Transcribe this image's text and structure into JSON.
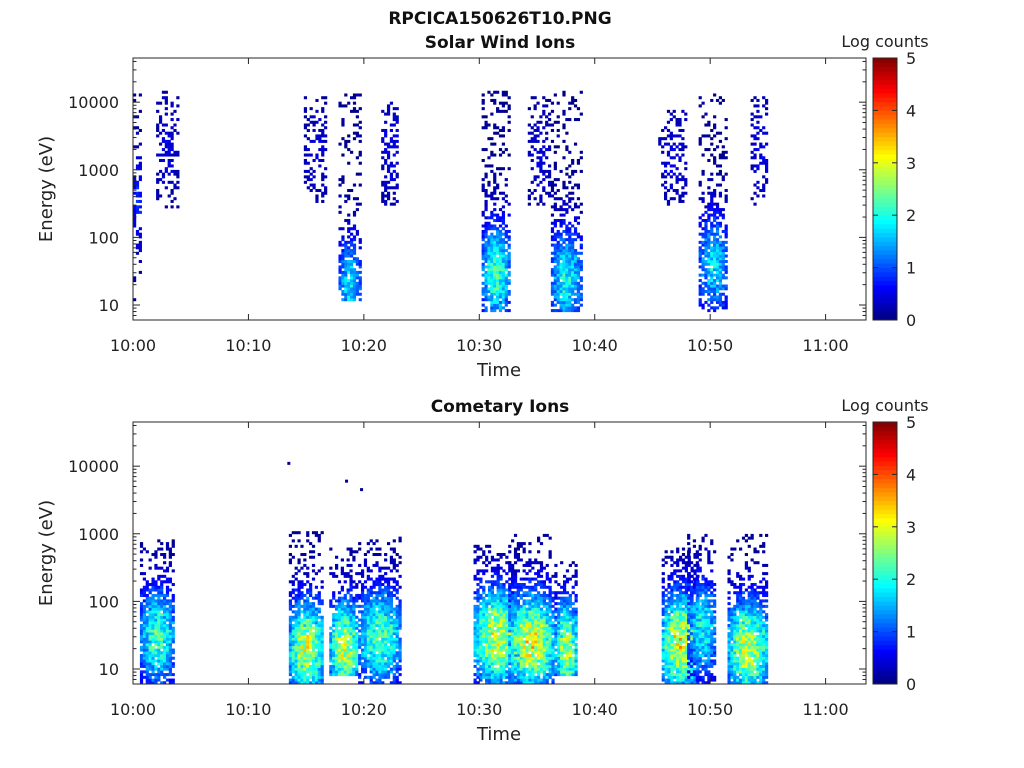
{
  "figure": {
    "title": "RPCICA150626T10.PNG"
  },
  "colormap": {
    "name": "jet",
    "stops": [
      "#00007f",
      "#0000ff",
      "#007fff",
      "#00ffff",
      "#7fff7f",
      "#ffff00",
      "#ff7f00",
      "#ff0000",
      "#7f0000"
    ],
    "background": "#ffffff"
  },
  "chart_data": [
    {
      "type": "heatmap",
      "title": "Solar Wind Ions",
      "xlabel": "Time",
      "ylabel": "Energy (eV)",
      "x_ticks": [
        "10:00",
        "10:10",
        "10:20",
        "10:30",
        "10:40",
        "10:50",
        "11:00"
      ],
      "x_range_minutes": [
        0,
        63.5
      ],
      "y_scale": "log",
      "y_ticks": [
        "10",
        "100",
        "1000",
        "10000"
      ],
      "y_tick_values": [
        10,
        100,
        1000,
        10000
      ],
      "y_range": [
        6,
        45000
      ],
      "colorbar": {
        "label": "Log counts",
        "min": 0,
        "max": 5,
        "ticks": [
          "0",
          "1",
          "2",
          "3",
          "4",
          "5"
        ]
      },
      "bursts": [
        {
          "t_start": 0.0,
          "t_end": 0.7,
          "e_low": 12,
          "e_high": 13000,
          "peak": 0.8,
          "peak_e": 300
        },
        {
          "t_start": 2.0,
          "t_end": 3.8,
          "e_low": 280,
          "e_high": 15000,
          "peak": 0.4,
          "peak_e": 2000
        },
        {
          "t_start": 14.8,
          "t_end": 16.8,
          "e_low": 300,
          "e_high": 13000,
          "peak": 0.4,
          "peak_e": 1500
        },
        {
          "t_start": 17.8,
          "t_end": 19.6,
          "e_low": 12,
          "e_high": 15000,
          "peak": 1.8,
          "peak_e": 18
        },
        {
          "t_start": 21.5,
          "t_end": 23.0,
          "e_low": 300,
          "e_high": 10000,
          "peak": 0.5,
          "peak_e": 2000
        },
        {
          "t_start": 30.2,
          "t_end": 32.6,
          "e_low": 8,
          "e_high": 15000,
          "peak": 2.3,
          "peak_e": 30
        },
        {
          "t_start": 34.2,
          "t_end": 36.0,
          "e_low": 300,
          "e_high": 12000,
          "peak": 0.4,
          "peak_e": 1500
        },
        {
          "t_start": 36.2,
          "t_end": 38.8,
          "e_low": 8,
          "e_high": 15000,
          "peak": 2.0,
          "peak_e": 25
        },
        {
          "t_start": 45.5,
          "t_end": 48.0,
          "e_low": 300,
          "e_high": 8000,
          "peak": 0.4,
          "peak_e": 1500
        },
        {
          "t_start": 49.0,
          "t_end": 51.5,
          "e_low": 8,
          "e_high": 15000,
          "peak": 1.8,
          "peak_e": 40
        },
        {
          "t_start": 53.5,
          "t_end": 55.0,
          "e_low": 300,
          "e_high": 12000,
          "peak": 0.5,
          "peak_e": 2000
        }
      ]
    },
    {
      "type": "heatmap",
      "title": "Cometary Ions",
      "xlabel": "Time",
      "ylabel": "Energy (eV)",
      "x_ticks": [
        "10:00",
        "10:10",
        "10:20",
        "10:30",
        "10:40",
        "10:50",
        "11:00"
      ],
      "x_range_minutes": [
        0,
        63.5
      ],
      "y_scale": "log",
      "y_ticks": [
        "10",
        "100",
        "1000",
        "10000"
      ],
      "y_tick_values": [
        10,
        100,
        1000,
        10000
      ],
      "y_range": [
        6,
        45000
      ],
      "colorbar": {
        "label": "Log counts",
        "min": 0,
        "max": 5,
        "ticks": [
          "0",
          "1",
          "2",
          "3",
          "4",
          "5"
        ]
      },
      "bursts": [
        {
          "t_start": 0.6,
          "t_end": 3.6,
          "e_low": 6,
          "e_high": 900,
          "peak": 2.3,
          "peak_e": 30
        },
        {
          "t_start": 13.5,
          "t_end": 16.5,
          "e_low": 6,
          "e_high": 1100,
          "peak": 3.0,
          "peak_e": 20
        },
        {
          "t_start": 17.0,
          "t_end": 19.5,
          "e_low": 8,
          "e_high": 600,
          "peak": 3.0,
          "peak_e": 20
        },
        {
          "t_start": 19.5,
          "t_end": 23.2,
          "e_low": 6,
          "e_high": 900,
          "peak": 2.4,
          "peak_e": 30
        },
        {
          "t_start": 29.5,
          "t_end": 33.5,
          "e_low": 6,
          "e_high": 700,
          "peak": 3.1,
          "peak_e": 30
        },
        {
          "t_start": 32.5,
          "t_end": 36.5,
          "e_low": 6,
          "e_high": 1000,
          "peak": 3.2,
          "peak_e": 25
        },
        {
          "t_start": 36.5,
          "t_end": 38.5,
          "e_low": 8,
          "e_high": 400,
          "peak": 2.9,
          "peak_e": 20
        },
        {
          "t_start": 45.8,
          "t_end": 49.0,
          "e_low": 6,
          "e_high": 600,
          "peak": 3.3,
          "peak_e": 25
        },
        {
          "t_start": 48.0,
          "t_end": 50.5,
          "e_low": 6,
          "e_high": 1000,
          "peak": 2.0,
          "peak_e": 40
        },
        {
          "t_start": 51.5,
          "t_end": 55.0,
          "e_low": 6,
          "e_high": 1000,
          "peak": 3.0,
          "peak_e": 20
        }
      ],
      "isolated_points": [
        {
          "t": 13.5,
          "e": 11000,
          "value": 0.1
        },
        {
          "t": 18.5,
          "e": 6000,
          "value": 0.1
        },
        {
          "t": 19.8,
          "e": 4500,
          "value": 0.1
        }
      ]
    }
  ]
}
